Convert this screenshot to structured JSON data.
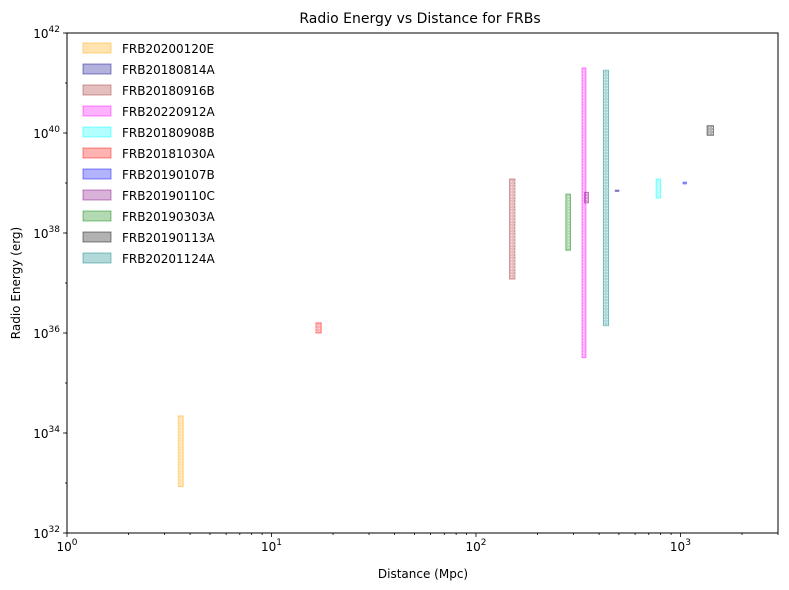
{
  "chart_data": {
    "type": "bar",
    "title": "Radio Energy vs Distance for FRBs",
    "xlabel": "Distance (Mpc)",
    "ylabel": "Radio Energy (erg)",
    "xscale": "log",
    "yscale": "log",
    "xlim": [
      1,
      3000
    ],
    "ylim": [
      1e+32,
      1e+42
    ],
    "x_ticks": [
      {
        "value": 1,
        "base": "10",
        "exp": "0"
      },
      {
        "value": 10,
        "base": "10",
        "exp": "1"
      },
      {
        "value": 100,
        "base": "10",
        "exp": "2"
      },
      {
        "value": 1000,
        "base": "10",
        "exp": "3"
      }
    ],
    "y_ticks": [
      {
        "value": 1e+32,
        "base": "10",
        "exp": "32"
      },
      {
        "value": 1e+34,
        "base": "10",
        "exp": "34"
      },
      {
        "value": 1e+36,
        "base": "10",
        "exp": "36"
      },
      {
        "value": 1e+38,
        "base": "10",
        "exp": "38"
      },
      {
        "value": 1e+40,
        "base": "10",
        "exp": "40"
      },
      {
        "value": 1e+42,
        "base": "10",
        "exp": "42"
      }
    ],
    "grid": false,
    "legend_position": "top-left",
    "series": [
      {
        "name": "FRB20200120E",
        "color": "#ffa500",
        "x_range": [
          3.5,
          3.7
        ],
        "y_range": [
          8.5e+32,
          2.2e+34
        ]
      },
      {
        "name": "FRB20180814A",
        "color": "#00008b",
        "x_range": [
          480,
          500
        ],
        "y_range": [
          6.8e+38,
          7.2e+38
        ]
      },
      {
        "name": "FRB20180916B",
        "color": "#a52a2a",
        "x_range": [
          146,
          155
        ],
        "y_range": [
          1.2e+37,
          1.2e+39
        ]
      },
      {
        "name": "FRB20220912A",
        "color": "#ff00ff",
        "x_range": [
          330,
          345
        ],
        "y_range": [
          3.2e+35,
          2e+41
        ]
      },
      {
        "name": "FRB20180908B",
        "color": "#00ffff",
        "x_range": [
          760,
          800
        ],
        "y_range": [
          5e+38,
          1.2e+39
        ]
      },
      {
        "name": "FRB20181030A",
        "color": "#ff0000",
        "x_range": [
          16.5,
          17.5
        ],
        "y_range": [
          1e+36,
          1.6e+36
        ]
      },
      {
        "name": "FRB20190107B",
        "color": "#0000ff",
        "x_range": [
          1030,
          1070
        ],
        "y_range": [
          9.6e+38,
          1.04e+39
        ]
      },
      {
        "name": "FRB20190110C",
        "color": "#800080",
        "x_range": [
          340,
          355
        ],
        "y_range": [
          4e+38,
          6.5e+38
        ]
      },
      {
        "name": "FRB20190303A",
        "color": "#008000",
        "x_range": [
          275,
          290
        ],
        "y_range": [
          4.5e+37,
          6e+38
        ]
      },
      {
        "name": "FRB20190113A",
        "color": "#000000",
        "x_range": [
          1350,
          1450
        ],
        "y_range": [
          9e+39,
          1.4e+40
        ]
      },
      {
        "name": "FRB20201124A",
        "color": "#008080",
        "x_range": [
          420,
          445
        ],
        "y_range": [
          1.4e+36,
          1.8e+41
        ]
      }
    ]
  }
}
